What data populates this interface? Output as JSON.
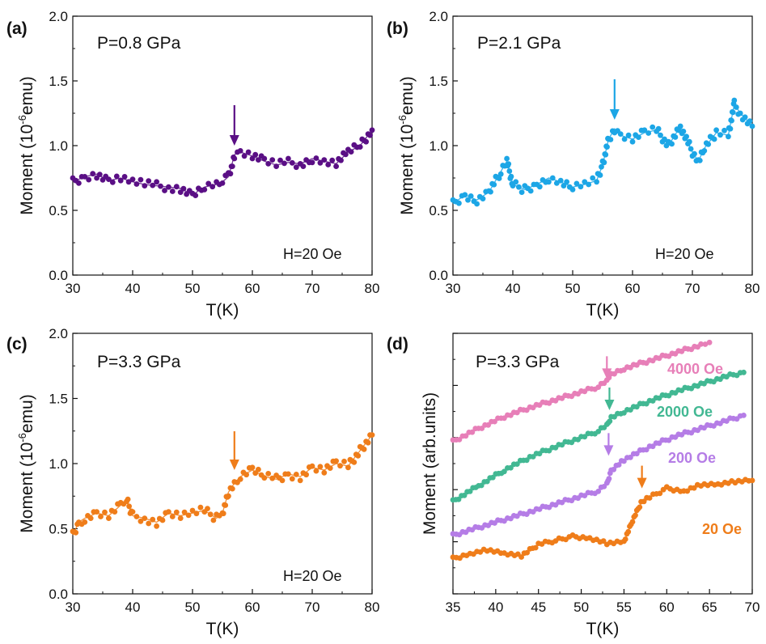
{
  "chart_data": [
    {
      "type": "scatter",
      "panel_label": "(a)",
      "annotation_pressure": "P=0.8 GPa",
      "annotation_field": "H=20 Oe",
      "xlabel": "T(K)",
      "ylabel": "Moment (10-6emu)",
      "ylabel_parts": {
        "pre": "Moment (10",
        "sup": "-6",
        "post": "emu)"
      },
      "xlim": [
        30,
        80
      ],
      "ylim": [
        0.0,
        2.0
      ],
      "xticks": [
        30,
        40,
        50,
        60,
        70,
        80
      ],
      "yticks": [
        "0.0",
        "0.5",
        "1.0",
        "1.5",
        "2.0"
      ],
      "transition_arrow": {
        "x": 57,
        "y": 1.0
      },
      "series": [
        {
          "color": "#5a0f85",
          "x": [
            30,
            32,
            34,
            36,
            38,
            40,
            42,
            44,
            46,
            48,
            50,
            52,
            54,
            55,
            56,
            56.5,
            57,
            58,
            60,
            62,
            64,
            66,
            68,
            70,
            72,
            74,
            76,
            78,
            80
          ],
          "y": [
            0.72,
            0.76,
            0.78,
            0.73,
            0.75,
            0.72,
            0.7,
            0.69,
            0.68,
            0.67,
            0.62,
            0.68,
            0.7,
            0.72,
            0.76,
            0.84,
            0.93,
            0.95,
            0.92,
            0.88,
            0.85,
            0.87,
            0.86,
            0.9,
            0.88,
            0.86,
            0.95,
            1.0,
            1.12
          ]
        }
      ]
    },
    {
      "type": "scatter",
      "panel_label": "(b)",
      "annotation_pressure": "P=2.1 GPa",
      "annotation_field": "H=20 Oe",
      "xlabel": "T(K)",
      "ylabel": "Moment (10-6emu)",
      "ylabel_parts": {
        "pre": "Moment (10",
        "sup": "-6",
        "post": "emu)"
      },
      "xlim": [
        30,
        80
      ],
      "ylim": [
        0.0,
        2.0
      ],
      "xticks": [
        30,
        40,
        50,
        60,
        70,
        80
      ],
      "yticks": [
        "0.0",
        "0.5",
        "1.0",
        "1.5",
        "2.0"
      ],
      "transition_arrow": {
        "x": 57,
        "y": 1.2
      },
      "series": [
        {
          "color": "#1ca6e6",
          "x": [
            30,
            32,
            34,
            36,
            38,
            39,
            40,
            42,
            44,
            46,
            48,
            50,
            52,
            54,
            55,
            56,
            57,
            58,
            60,
            62,
            64,
            66,
            68,
            70,
            71,
            72,
            74,
            76,
            77,
            78,
            80
          ],
          "y": [
            0.55,
            0.62,
            0.58,
            0.64,
            0.8,
            0.88,
            0.7,
            0.66,
            0.7,
            0.75,
            0.72,
            0.68,
            0.7,
            0.73,
            0.85,
            1.05,
            1.13,
            1.08,
            1.05,
            1.1,
            1.12,
            1.0,
            1.15,
            0.95,
            0.88,
            0.98,
            1.1,
            1.08,
            1.32,
            1.25,
            1.15
          ]
        }
      ]
    },
    {
      "type": "scatter",
      "panel_label": "(c)",
      "annotation_pressure": "P=3.3 GPa",
      "annotation_field": "H=20 Oe",
      "xlabel": "T(K)",
      "ylabel": "Moment (10-6emu)",
      "ylabel_parts": {
        "pre": "Moment (10",
        "sup": "-6",
        "post": "emu)"
      },
      "xlim": [
        30,
        80
      ],
      "ylim": [
        0.0,
        2.0
      ],
      "xticks": [
        30,
        40,
        50,
        60,
        70,
        80
      ],
      "yticks": [
        "0.0",
        "0.5",
        "1.0",
        "1.5",
        "2.0"
      ],
      "transition_arrow": {
        "x": 57,
        "y": 0.95
      },
      "series": [
        {
          "color": "#ef7d1a",
          "x": [
            30,
            31,
            32,
            34,
            36,
            38,
            39,
            40,
            42,
            44,
            46,
            48,
            50,
            52,
            54,
            55,
            56,
            57,
            58,
            60,
            62,
            64,
            66,
            68,
            70,
            72,
            74,
            76,
            78,
            80
          ],
          "y": [
            0.45,
            0.55,
            0.58,
            0.62,
            0.6,
            0.68,
            0.72,
            0.6,
            0.58,
            0.55,
            0.62,
            0.6,
            0.62,
            0.64,
            0.58,
            0.62,
            0.78,
            0.85,
            0.9,
            0.95,
            0.9,
            0.88,
            0.92,
            0.9,
            0.97,
            0.95,
            1.0,
            0.98,
            1.1,
            1.22
          ]
        }
      ]
    },
    {
      "type": "scatter",
      "panel_label": "(d)",
      "annotation_pressure": "P=3.3 GPa",
      "xlabel": "T(K)",
      "ylabel": "Moment (arb.units)",
      "xlim": [
        35,
        70
      ],
      "ylim": [
        0,
        10
      ],
      "xticks": [
        35,
        40,
        45,
        50,
        55,
        60,
        65,
        70
      ],
      "yticks": [
        "",
        "",
        "",
        "",
        "",
        ""
      ],
      "series": [
        {
          "name": "4000 Oe",
          "color": "#e77fb8",
          "arrow": {
            "x": 53,
            "y": 8.25
          },
          "x": [
            35,
            38,
            41,
            44,
            47,
            50,
            52,
            53,
            53.5,
            55,
            58,
            61,
            64,
            65
          ],
          "y": [
            5.85,
            6.35,
            6.8,
            7.15,
            7.45,
            7.75,
            7.95,
            8.15,
            8.45,
            8.65,
            8.95,
            9.25,
            9.55,
            9.65
          ]
        },
        {
          "name": "2000 Oe",
          "color": "#42b893",
          "arrow": {
            "x": 53.3,
            "y": 7.05
          },
          "x": [
            35,
            38,
            41,
            44,
            47,
            50,
            52,
            53,
            53.5,
            55,
            58,
            61,
            64,
            67,
            69
          ],
          "y": [
            3.55,
            4.15,
            4.75,
            5.25,
            5.65,
            6.0,
            6.25,
            6.45,
            6.8,
            7.0,
            7.4,
            7.75,
            8.05,
            8.35,
            8.5
          ]
        },
        {
          "name": "200 Oe",
          "color": "#b57de6",
          "arrow": {
            "x": 53.2,
            "y": 5.3
          },
          "x": [
            35,
            38,
            41,
            44,
            47,
            50,
            52,
            53,
            53.5,
            55,
            58,
            61,
            64,
            67,
            69
          ],
          "y": [
            2.25,
            2.55,
            2.85,
            3.15,
            3.45,
            3.75,
            3.95,
            4.2,
            4.75,
            5.15,
            5.65,
            6.05,
            6.35,
            6.65,
            6.85
          ]
        },
        {
          "name": "20 Oe",
          "color": "#ef7d1a",
          "arrow": {
            "x": 57.1,
            "y": 4.05
          },
          "x": [
            35,
            37,
            39,
            41,
            43,
            45,
            47,
            49,
            51,
            53,
            55,
            56,
            57,
            58,
            60,
            62,
            64,
            66,
            68,
            70
          ],
          "y": [
            1.35,
            1.55,
            1.7,
            1.55,
            1.45,
            1.9,
            2.05,
            2.2,
            2.15,
            1.95,
            2.0,
            2.8,
            3.5,
            3.7,
            4.05,
            3.95,
            4.2,
            4.2,
            4.3,
            4.35
          ]
        }
      ]
    }
  ]
}
